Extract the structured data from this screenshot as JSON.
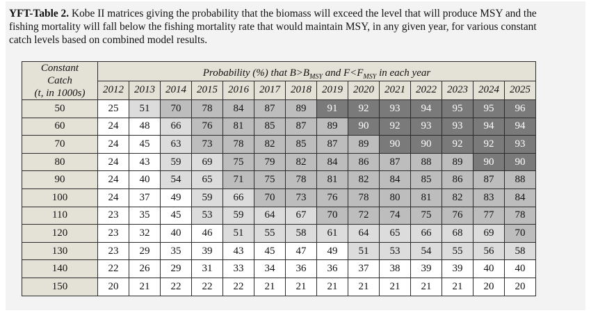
{
  "caption": {
    "label": "YFT-Table 2.",
    "text": "Kobe II matrices giving the probability that the biomass will exceed the level that will produce MSY and the fishing mortality will fall below the fishing mortality rate that would maintain MSY, in any given year, for various constant catch levels based on combined model results."
  },
  "table": {
    "row_header_lines": [
      "Constant",
      "Catch",
      "(t, in 1000s)"
    ],
    "span_header": {
      "prefix": "Probability (%) that B>B",
      "b_sub": "MSY",
      "middle": " and F<F",
      "f_sub": "MSY",
      "suffix": " in each year"
    },
    "years": [
      "2012",
      "2013",
      "2014",
      "2015",
      "2016",
      "2017",
      "2018",
      "2019",
      "2020",
      "2021",
      "2022",
      "2023",
      "2024",
      "2025"
    ],
    "rows": [
      {
        "catch": "50",
        "values": [
          25,
          51,
          70,
          78,
          84,
          87,
          89,
          91,
          92,
          93,
          94,
          95,
          95,
          96
        ]
      },
      {
        "catch": "60",
        "values": [
          24,
          48,
          66,
          76,
          81,
          85,
          87,
          89,
          90,
          92,
          93,
          93,
          94,
          94
        ]
      },
      {
        "catch": "70",
        "values": [
          24,
          45,
          63,
          73,
          78,
          82,
          85,
          87,
          89,
          90,
          90,
          92,
          92,
          93
        ]
      },
      {
        "catch": "80",
        "values": [
          24,
          43,
          59,
          69,
          75,
          79,
          82,
          84,
          86,
          87,
          88,
          89,
          90,
          90
        ]
      },
      {
        "catch": "90",
        "values": [
          24,
          40,
          54,
          65,
          71,
          75,
          78,
          81,
          82,
          84,
          85,
          86,
          87,
          88
        ]
      },
      {
        "catch": "100",
        "values": [
          24,
          37,
          49,
          59,
          66,
          70,
          73,
          76,
          78,
          80,
          81,
          82,
          83,
          84
        ]
      },
      {
        "catch": "110",
        "values": [
          23,
          35,
          45,
          53,
          59,
          64,
          67,
          70,
          72,
          74,
          75,
          76,
          77,
          78
        ]
      },
      {
        "catch": "120",
        "values": [
          23,
          32,
          40,
          46,
          51,
          55,
          58,
          61,
          64,
          65,
          66,
          68,
          69,
          70
        ]
      },
      {
        "catch": "130",
        "values": [
          23,
          29,
          35,
          39,
          43,
          45,
          47,
          49,
          51,
          53,
          54,
          55,
          56,
          58
        ]
      },
      {
        "catch": "140",
        "values": [
          22,
          26,
          29,
          31,
          33,
          34,
          36,
          36,
          37,
          38,
          39,
          39,
          40,
          40
        ]
      },
      {
        "catch": "150",
        "values": [
          20,
          21,
          22,
          22,
          22,
          21,
          21,
          21,
          21,
          21,
          21,
          21,
          20,
          20
        ]
      }
    ],
    "shading_colors": {
      "lt50": "#ffffff",
      "50to69": "#dcdcdc",
      "70to89": "#bdbdbd",
      "gte90": "#7a7a7a"
    }
  }
}
